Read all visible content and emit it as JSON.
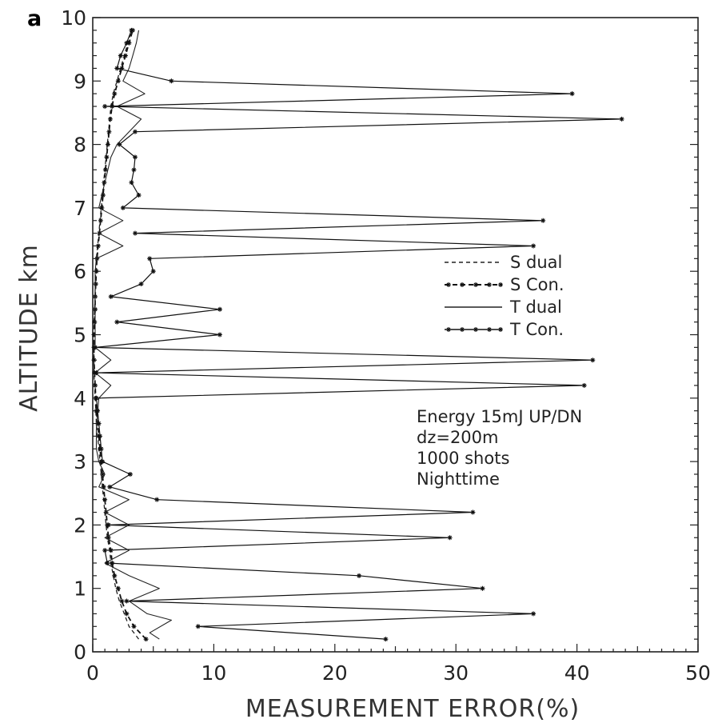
{
  "chart_data": {
    "type": "line",
    "panel_label": "a",
    "xlabel": "MEASUREMENT ERROR(%)",
    "ylabel": "ALTITUDE km",
    "xlim": [
      0,
      50
    ],
    "ylim": [
      0,
      10
    ],
    "xticks": [
      0,
      10,
      20,
      30,
      40,
      50
    ],
    "yticks": [
      0,
      1,
      2,
      3,
      4,
      5,
      6,
      7,
      8,
      9,
      10
    ],
    "grid": false,
    "legend_position": "center-right",
    "annotation": [
      "Energy  15mJ  UP/DN",
      "dz=200m",
      "1000  shots",
      "Nighttime"
    ],
    "series": [
      {
        "name": "S  dual",
        "style": "dashed",
        "points": [
          [
            3.8,
            0.2
          ],
          [
            3.0,
            0.4
          ],
          [
            2.6,
            0.6
          ],
          [
            2.2,
            0.8
          ],
          [
            1.9,
            1.0
          ],
          [
            1.7,
            1.2
          ],
          [
            1.5,
            1.4
          ],
          [
            1.4,
            1.6
          ],
          [
            1.2,
            1.8
          ],
          [
            1.1,
            2.0
          ],
          [
            1.0,
            2.2
          ],
          [
            0.9,
            2.4
          ],
          [
            0.8,
            2.6
          ],
          [
            0.7,
            2.8
          ],
          [
            0.6,
            3.0
          ],
          [
            0.5,
            3.2
          ],
          [
            0.4,
            3.4
          ],
          [
            0.3,
            3.6
          ],
          [
            0.25,
            3.8
          ],
          [
            0.2,
            4.0
          ],
          [
            0.15,
            4.2
          ],
          [
            0.1,
            4.4
          ],
          [
            0.1,
            4.6
          ],
          [
            0.1,
            4.8
          ],
          [
            0.1,
            5.0
          ],
          [
            0.1,
            5.2
          ],
          [
            0.15,
            5.4
          ],
          [
            0.2,
            5.6
          ],
          [
            0.2,
            5.8
          ],
          [
            0.25,
            6.0
          ],
          [
            0.3,
            6.2
          ],
          [
            0.4,
            6.4
          ],
          [
            0.5,
            6.6
          ],
          [
            0.6,
            6.8
          ],
          [
            0.7,
            7.0
          ],
          [
            0.8,
            7.2
          ],
          [
            0.9,
            7.4
          ],
          [
            1.0,
            7.6
          ],
          [
            1.1,
            7.8
          ],
          [
            1.2,
            8.0
          ],
          [
            1.3,
            8.2
          ],
          [
            1.4,
            8.4
          ],
          [
            1.5,
            8.6
          ],
          [
            1.7,
            8.8
          ],
          [
            2.0,
            9.0
          ],
          [
            2.3,
            9.2
          ],
          [
            2.6,
            9.4
          ],
          [
            2.9,
            9.6
          ],
          [
            3.2,
            9.8
          ]
        ]
      },
      {
        "name": "S  Con.",
        "style": "dash-star",
        "points": [
          [
            4.4,
            0.2
          ],
          [
            3.4,
            0.4
          ],
          [
            2.8,
            0.6
          ],
          [
            2.4,
            0.8
          ],
          [
            2.1,
            1.0
          ],
          [
            1.8,
            1.2
          ],
          [
            1.6,
            1.4
          ],
          [
            1.5,
            1.6
          ],
          [
            1.3,
            1.8
          ],
          [
            1.2,
            2.0
          ],
          [
            1.1,
            2.2
          ],
          [
            1.0,
            2.4
          ],
          [
            0.9,
            2.6
          ],
          [
            0.8,
            2.8
          ],
          [
            0.7,
            3.0
          ],
          [
            0.6,
            3.2
          ],
          [
            0.5,
            3.4
          ],
          [
            0.4,
            3.6
          ],
          [
            0.3,
            3.8
          ],
          [
            0.25,
            4.0
          ],
          [
            0.2,
            4.2
          ],
          [
            0.15,
            4.4
          ],
          [
            0.1,
            4.6
          ],
          [
            0.1,
            4.8
          ],
          [
            0.1,
            5.0
          ],
          [
            0.15,
            5.2
          ],
          [
            0.2,
            5.4
          ],
          [
            0.2,
            5.6
          ],
          [
            0.25,
            5.8
          ],
          [
            0.3,
            6.0
          ],
          [
            0.35,
            6.2
          ],
          [
            0.45,
            6.4
          ],
          [
            0.55,
            6.6
          ],
          [
            0.65,
            6.8
          ],
          [
            0.75,
            7.0
          ],
          [
            0.85,
            7.2
          ],
          [
            0.95,
            7.4
          ],
          [
            1.05,
            7.6
          ],
          [
            1.15,
            7.8
          ],
          [
            1.25,
            8.0
          ],
          [
            1.35,
            8.2
          ],
          [
            1.45,
            8.4
          ],
          [
            1.6,
            8.6
          ],
          [
            1.8,
            8.8
          ],
          [
            2.1,
            9.0
          ],
          [
            2.4,
            9.2
          ],
          [
            2.7,
            9.4
          ],
          [
            3.0,
            9.6
          ],
          [
            3.3,
            9.8
          ]
        ]
      },
      {
        "name": "T  dual",
        "style": "solid",
        "points": [
          [
            5.5,
            0.2
          ],
          [
            4.7,
            0.3
          ],
          [
            6.5,
            0.5
          ],
          [
            4.5,
            0.6
          ],
          [
            3.0,
            0.8
          ],
          [
            5.5,
            1.0
          ],
          [
            3.0,
            1.2
          ],
          [
            1.0,
            1.4
          ],
          [
            3.0,
            1.6
          ],
          [
            1.0,
            1.8
          ],
          [
            3.0,
            2.0
          ],
          [
            1.0,
            2.2
          ],
          [
            3.0,
            2.4
          ],
          [
            0.5,
            2.6
          ],
          [
            1.0,
            2.8
          ],
          [
            0.5,
            3.0
          ],
          [
            0.3,
            3.2
          ],
          [
            0.3,
            3.5
          ],
          [
            0.5,
            4.0
          ],
          [
            1.5,
            4.2
          ],
          [
            0.2,
            4.4
          ],
          [
            1.5,
            4.6
          ],
          [
            0.2,
            4.8
          ],
          [
            0.2,
            5.4
          ],
          [
            0.2,
            6.0
          ],
          [
            0.3,
            6.2
          ],
          [
            2.5,
            6.4
          ],
          [
            0.5,
            6.6
          ],
          [
            2.5,
            6.8
          ],
          [
            0.5,
            7.0
          ],
          [
            1.0,
            7.4
          ],
          [
            1.5,
            7.8
          ],
          [
            2.0,
            8.0
          ],
          [
            4.0,
            8.4
          ],
          [
            2.0,
            8.6
          ],
          [
            4.3,
            8.8
          ],
          [
            2.5,
            9.0
          ],
          [
            3.0,
            9.2
          ],
          [
            3.3,
            9.4
          ],
          [
            3.6,
            9.6
          ],
          [
            3.8,
            9.8
          ]
        ]
      },
      {
        "name": "T  Con.",
        "style": "solid-star",
        "points": [
          [
            24.2,
            0.2
          ],
          [
            8.7,
            0.4
          ],
          [
            36.4,
            0.6
          ],
          [
            2.8,
            0.8
          ],
          [
            32.2,
            1.0
          ],
          [
            22.0,
            1.2
          ],
          [
            1.2,
            1.4
          ],
          [
            1.0,
            1.6
          ],
          [
            29.5,
            1.8
          ],
          [
            1.3,
            2.0
          ],
          [
            31.4,
            2.2
          ],
          [
            5.3,
            2.4
          ],
          [
            1.4,
            2.6
          ],
          [
            3.1,
            2.8
          ],
          [
            0.8,
            3.0
          ],
          [
            0.7,
            3.2
          ],
          [
            0.6,
            3.4
          ],
          [
            0.5,
            3.6
          ],
          [
            0.4,
            3.8
          ],
          [
            0.3,
            4.0
          ],
          [
            40.6,
            4.2
          ],
          [
            0.3,
            4.4
          ],
          [
            41.3,
            4.6
          ],
          [
            0.2,
            4.8
          ],
          [
            10.5,
            5.0
          ],
          [
            2.0,
            5.2
          ],
          [
            10.5,
            5.4
          ],
          [
            1.5,
            5.6
          ],
          [
            4.0,
            5.8
          ],
          [
            5.0,
            6.0
          ],
          [
            4.7,
            6.2
          ],
          [
            36.4,
            6.4
          ],
          [
            3.5,
            6.6
          ],
          [
            37.2,
            6.8
          ],
          [
            2.5,
            7.0
          ],
          [
            3.8,
            7.2
          ],
          [
            3.2,
            7.4
          ],
          [
            3.4,
            7.6
          ],
          [
            3.5,
            7.8
          ],
          [
            2.2,
            8.0
          ],
          [
            3.5,
            8.2
          ],
          [
            43.7,
            8.4
          ],
          [
            1.0,
            8.6
          ],
          [
            39.6,
            8.8
          ],
          [
            6.5,
            9.0
          ],
          [
            2.0,
            9.2
          ],
          [
            2.3,
            9.4
          ],
          [
            2.8,
            9.6
          ],
          [
            3.2,
            9.8
          ]
        ]
      }
    ]
  }
}
